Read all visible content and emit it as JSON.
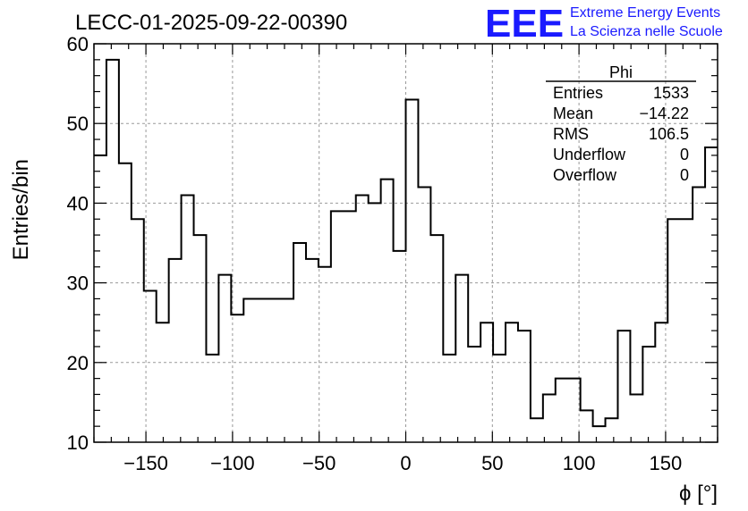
{
  "chart_data": {
    "type": "histogram",
    "title": "LECC-01-2025-09-22-00390",
    "xlabel": "ϕ [°]",
    "ylabel": "Entries/bin",
    "xlim": [
      -180,
      180
    ],
    "ylim": [
      10,
      60
    ],
    "grid": true,
    "bin_width": 7.2,
    "x_ticks": [
      "−150",
      "−100",
      "−50",
      "0",
      "50",
      "100",
      "150"
    ],
    "y_ticks": [
      "10",
      "20",
      "30",
      "40",
      "50",
      "60"
    ],
    "values": [
      46,
      58,
      45,
      38,
      29,
      25,
      33,
      41,
      36,
      21,
      31,
      26,
      28,
      28,
      28,
      28,
      35,
      33,
      32,
      39,
      39,
      41,
      40,
      43,
      34,
      53,
      42,
      36,
      21,
      31,
      22,
      25,
      21,
      25,
      24,
      13,
      16,
      18,
      18,
      14,
      12,
      13,
      24,
      16,
      22,
      25,
      38,
      38,
      42,
      47
    ]
  },
  "stats_box": {
    "title": "Phi",
    "rows": [
      {
        "label": "Entries",
        "value": "1533"
      },
      {
        "label": "Mean",
        "value": "−14.22"
      },
      {
        "label": "RMS",
        "value": "106.5"
      },
      {
        "label": "Underflow",
        "value": "0"
      },
      {
        "label": "Overflow",
        "value": "0"
      }
    ]
  },
  "logo": {
    "text": "EEE",
    "line1": "Extreme Energy Events",
    "line2": "La Scienza nelle Scuole",
    "color": "#1a1aff"
  }
}
